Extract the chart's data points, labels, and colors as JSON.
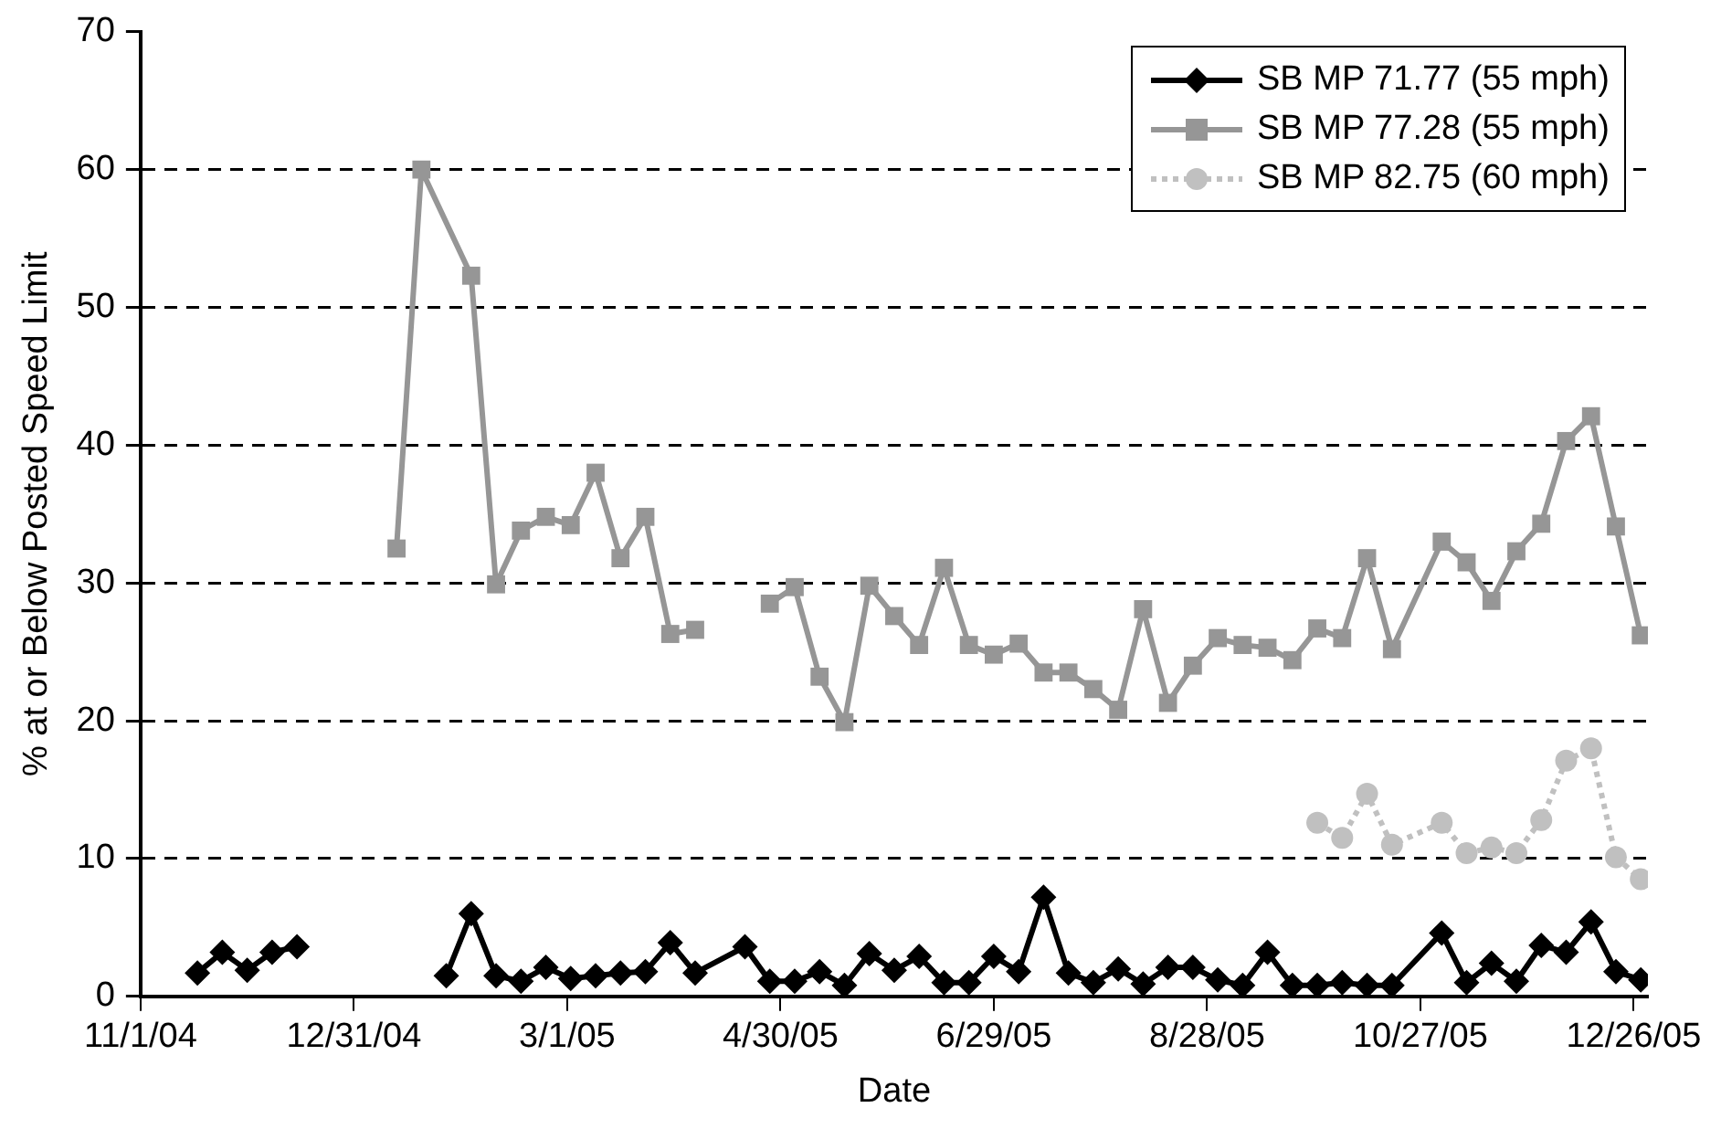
{
  "chart_data": {
    "type": "line",
    "xlabel": "Date",
    "ylabel": "% at or Below Posted Speed Limit",
    "xlim": [
      "2004-11-01",
      "2005-12-30"
    ],
    "xticks": [
      {
        "value": "2004-11-01",
        "label": "11/1/04"
      },
      {
        "value": "2004-12-31",
        "label": "12/31/04"
      },
      {
        "value": "2005-03-01",
        "label": "3/1/05"
      },
      {
        "value": "2005-04-30",
        "label": "4/30/05"
      },
      {
        "value": "2005-06-29",
        "label": "6/29/05"
      },
      {
        "value": "2005-08-28",
        "label": "8/28/05"
      },
      {
        "value": "2005-10-27",
        "label": "10/27/05"
      },
      {
        "value": "2005-12-26",
        "label": "12/26/05"
      }
    ],
    "ylim": [
      0,
      70
    ],
    "yticks": [
      0,
      10,
      20,
      30,
      40,
      50,
      60,
      70
    ],
    "grid": "y",
    "legend": "top right",
    "series": [
      {
        "name": "SB MP 71.77 (55 mph)",
        "color": "#000000",
        "marker": "diamond",
        "line_style": "solid",
        "x": [
          "2004-11-17",
          "2004-11-24",
          "2004-12-01",
          "2004-12-08",
          "2004-12-15",
          "2004-12-22",
          "2005-01-26",
          "2005-02-02",
          "2005-02-09",
          "2005-02-16",
          "2005-02-23",
          "2005-03-02",
          "2005-03-09",
          "2005-03-16",
          "2005-03-23",
          "2005-03-30",
          "2005-04-06",
          "2005-04-20",
          "2005-04-27",
          "2005-05-04",
          "2005-05-11",
          "2005-05-18",
          "2005-05-25",
          "2005-06-01",
          "2005-06-08",
          "2005-06-15",
          "2005-06-22",
          "2005-06-29",
          "2005-07-06",
          "2005-07-13",
          "2005-07-20",
          "2005-07-27",
          "2005-08-03",
          "2005-08-10",
          "2005-08-17",
          "2005-08-24",
          "2005-08-31",
          "2005-09-07",
          "2005-09-14",
          "2005-09-21",
          "2005-09-28",
          "2005-10-05",
          "2005-10-12",
          "2005-10-19",
          "2005-11-02",
          "2005-11-09",
          "2005-11-16",
          "2005-11-23",
          "2005-11-30",
          "2005-12-07",
          "2005-12-14",
          "2005-12-21",
          "2005-12-28"
        ],
        "values": [
          1.7,
          3.2,
          1.9,
          3.2,
          3.6,
          null,
          1.5,
          6.0,
          1.5,
          1.1,
          2.1,
          1.3,
          1.5,
          1.7,
          1.8,
          3.9,
          1.7,
          3.6,
          1.1,
          1.1,
          1.8,
          0.8,
          3.1,
          1.9,
          2.9,
          1.0,
          1.0,
          2.9,
          1.8,
          7.2,
          1.7,
          1.0,
          2.0,
          0.9,
          2.1,
          2.1,
          1.2,
          0.8,
          3.2,
          0.8,
          0.8,
          1.0,
          0.8,
          0.8,
          4.6,
          1.0,
          2.4,
          1.1,
          3.7,
          3.2,
          5.4,
          1.8,
          1.2
        ]
      },
      {
        "name": "SB MP 77.28 (55 mph)",
        "color": "#969696",
        "marker": "square",
        "line_style": "solid",
        "x": [
          "2005-01-12",
          "2005-01-19",
          "2005-02-02",
          "2005-02-09",
          "2005-02-16",
          "2005-02-23",
          "2005-03-02",
          "2005-03-09",
          "2005-03-16",
          "2005-03-23",
          "2005-03-30",
          "2005-04-06",
          "2005-04-13",
          "2005-04-27",
          "2005-05-04",
          "2005-05-11",
          "2005-05-18",
          "2005-05-25",
          "2005-06-01",
          "2005-06-08",
          "2005-06-15",
          "2005-06-22",
          "2005-06-29",
          "2005-07-06",
          "2005-07-13",
          "2005-07-20",
          "2005-07-27",
          "2005-08-03",
          "2005-08-10",
          "2005-08-17",
          "2005-08-24",
          "2005-08-31",
          "2005-09-07",
          "2005-09-14",
          "2005-09-21",
          "2005-09-28",
          "2005-10-05",
          "2005-10-12",
          "2005-10-19",
          "2005-11-02",
          "2005-11-09",
          "2005-11-16",
          "2005-11-23",
          "2005-11-30",
          "2005-12-07",
          "2005-12-14",
          "2005-12-21",
          "2005-12-28"
        ],
        "values": [
          32.5,
          60.0,
          52.3,
          29.9,
          33.8,
          34.8,
          34.2,
          38.0,
          31.8,
          34.8,
          26.3,
          26.6,
          null,
          28.5,
          29.7,
          23.2,
          19.9,
          29.8,
          27.6,
          25.5,
          31.1,
          25.5,
          24.8,
          25.6,
          23.5,
          23.5,
          22.3,
          20.8,
          28.1,
          21.3,
          24.0,
          26.0,
          25.5,
          25.3,
          24.4,
          26.7,
          26.0,
          31.8,
          25.2,
          33.0,
          31.5,
          28.7,
          32.3,
          34.3,
          40.3,
          42.1,
          34.1,
          26.2
        ]
      },
      {
        "name": "SB MP 82.75 (60 mph)",
        "color": "#c0c0c0",
        "marker": "circle",
        "line_style": "dotted",
        "x": [
          "2005-09-28",
          "2005-10-05",
          "2005-10-12",
          "2005-10-19",
          "2005-11-02",
          "2005-11-09",
          "2005-11-16",
          "2005-11-23",
          "2005-11-30",
          "2005-12-07",
          "2005-12-14",
          "2005-12-21",
          "2005-12-28"
        ],
        "values": [
          12.6,
          11.5,
          14.7,
          11.0,
          12.6,
          10.4,
          10.8,
          10.4,
          12.8,
          17.1,
          18.0,
          10.1,
          8.5
        ]
      }
    ]
  }
}
